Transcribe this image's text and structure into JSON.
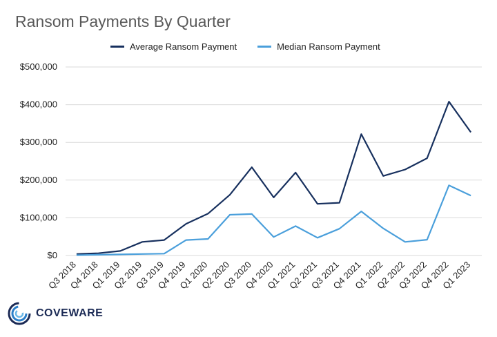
{
  "colors": {
    "average": "#17305e",
    "median": "#4a9fdb",
    "grid": "#d9d9d9"
  },
  "logo": {
    "text": "COVEWARE",
    "icon": "coveware-swirl-icon"
  },
  "chart_data": {
    "type": "line",
    "title": "Ransom Payments By Quarter",
    "xlabel": "",
    "ylabel": "",
    "categories": [
      "Q3 2018",
      "Q4 2018",
      "Q1 2019",
      "Q2 2019",
      "Q3 2019",
      "Q4 2019",
      "Q1 2020",
      "Q2 2020",
      "Q3 2020",
      "Q4 2020",
      "Q1 2021",
      "Q2 2021",
      "Q3 2021",
      "Q4 2021",
      "Q1 2022",
      "Q2 2022",
      "Q3 2022",
      "Q4 2022",
      "Q1 2023"
    ],
    "series": [
      {
        "name": "Average Ransom Payment",
        "values": [
          4000,
          6000,
          12000,
          36000,
          41000,
          84000,
          111000,
          161000,
          234000,
          154000,
          220000,
          137000,
          140000,
          322000,
          211000,
          228000,
          258000,
          408000,
          327000
        ]
      },
      {
        "name": "Median Ransom Payment",
        "values": [
          1000,
          2000,
          3000,
          4000,
          5000,
          41000,
          44000,
          108000,
          110000,
          49000,
          78000,
          47000,
          71000,
          117000,
          72000,
          36000,
          42000,
          186000,
          159000
        ]
      }
    ],
    "ylim": [
      0,
      500000
    ],
    "yticks": [
      0,
      100000,
      200000,
      300000,
      400000,
      500000
    ],
    "ytick_labels": [
      "$0",
      "$100,000",
      "$200,000",
      "$300,000",
      "$400,000",
      "$500,000"
    ],
    "grid": true,
    "legend": "top-center"
  }
}
